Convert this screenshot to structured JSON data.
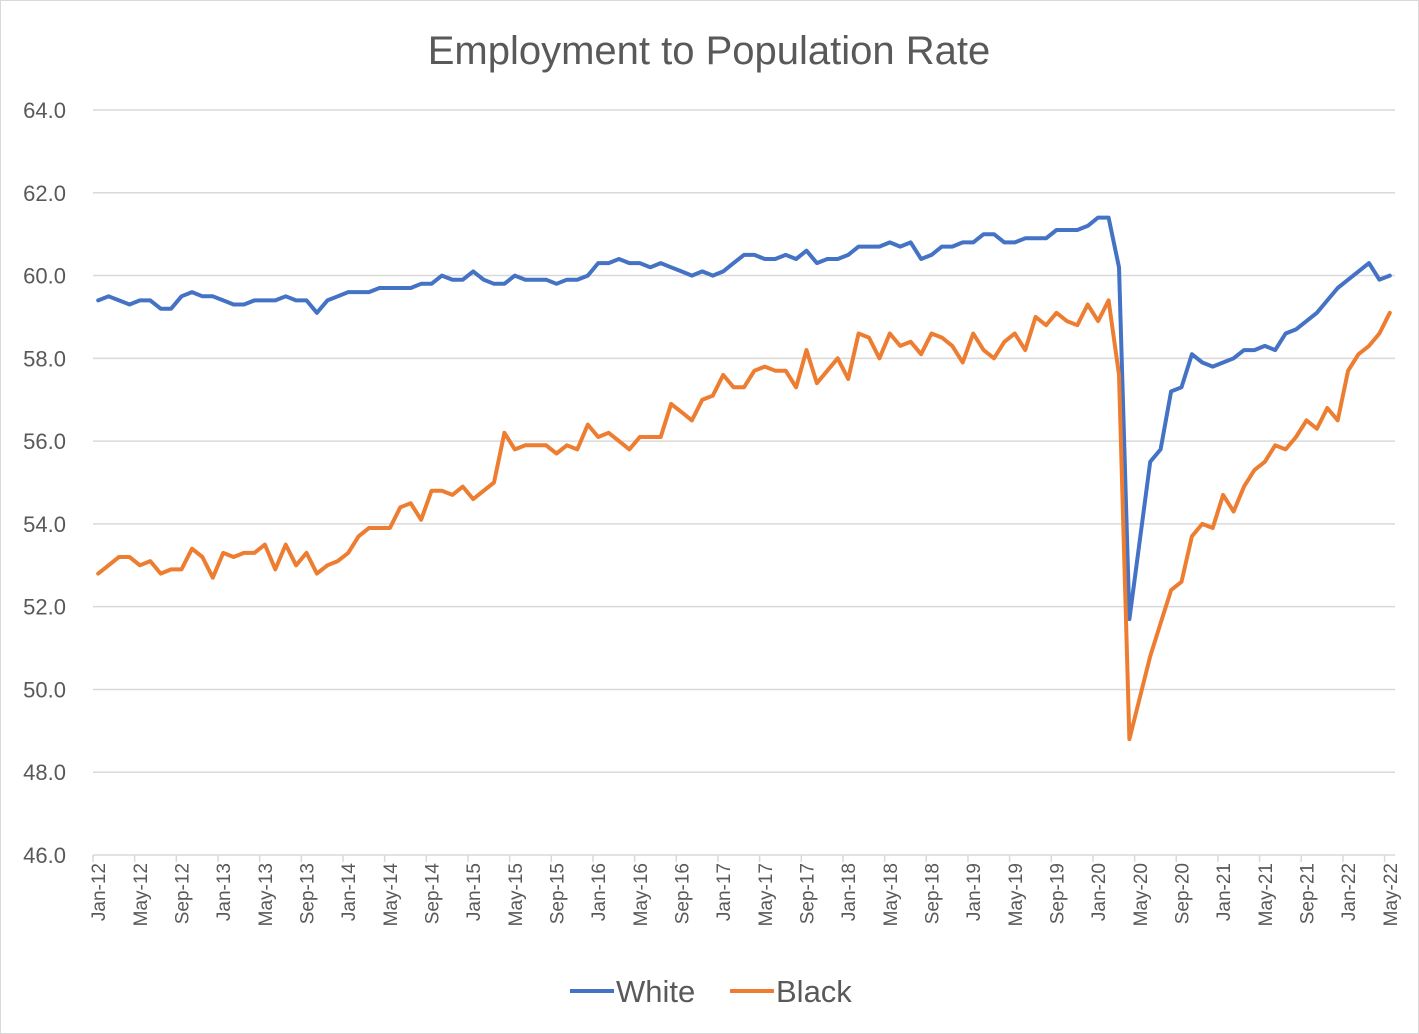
{
  "chart_data": {
    "type": "line",
    "title": "Employment to Population Rate",
    "xlabel": "",
    "ylabel": "",
    "ylim": [
      46,
      64
    ],
    "yticks": [
      "46.0",
      "48.0",
      "50.0",
      "52.0",
      "54.0",
      "56.0",
      "58.0",
      "60.0",
      "62.0",
      "64.0"
    ],
    "grid": true,
    "legend_position": "bottom",
    "x_start": "Jan-12",
    "x_end": "May-22",
    "x_frequency": "monthly",
    "xtick_labels": [
      "Jan-12",
      "May-12",
      "Sep-12",
      "Jan-13",
      "May-13",
      "Sep-13",
      "Jan-14",
      "May-14",
      "Sep-14",
      "Jan-15",
      "May-15",
      "Sep-15",
      "Jan-16",
      "May-16",
      "Sep-16",
      "Jan-17",
      "May-17",
      "Sep-17",
      "Jan-18",
      "May-18",
      "Sep-18",
      "Jan-19",
      "May-19",
      "Sep-19",
      "Jan-20",
      "May-20",
      "Sep-20",
      "Jan-21",
      "May-21",
      "Sep-21",
      "Jan-22",
      "May-22"
    ],
    "series": [
      {
        "name": "White",
        "color": "#4472C4",
        "values": [
          59.4,
          59.5,
          59.4,
          59.3,
          59.4,
          59.4,
          59.2,
          59.2,
          59.5,
          59.6,
          59.5,
          59.5,
          59.4,
          59.3,
          59.3,
          59.4,
          59.4,
          59.4,
          59.5,
          59.4,
          59.4,
          59.1,
          59.4,
          59.5,
          59.6,
          59.6,
          59.6,
          59.7,
          59.7,
          59.7,
          59.7,
          59.8,
          59.8,
          60.0,
          59.9,
          59.9,
          60.1,
          59.9,
          59.8,
          59.8,
          60.0,
          59.9,
          59.9,
          59.9,
          59.8,
          59.9,
          59.9,
          60.0,
          60.3,
          60.3,
          60.4,
          60.3,
          60.3,
          60.2,
          60.3,
          60.2,
          60.1,
          60.0,
          60.1,
          60.0,
          60.1,
          60.3,
          60.5,
          60.5,
          60.4,
          60.4,
          60.5,
          60.4,
          60.6,
          60.3,
          60.4,
          60.4,
          60.5,
          60.7,
          60.7,
          60.7,
          60.8,
          60.7,
          60.8,
          60.4,
          60.5,
          60.7,
          60.7,
          60.8,
          60.8,
          61.0,
          61.0,
          60.8,
          60.8,
          60.9,
          60.9,
          60.9,
          61.1,
          61.1,
          61.1,
          61.2,
          61.4,
          61.4,
          60.2,
          51.7,
          53.6,
          55.5,
          55.8,
          57.2,
          57.3,
          58.1,
          57.9,
          57.8,
          57.9,
          58.0,
          58.2,
          58.2,
          58.3,
          58.2,
          58.6,
          58.7,
          58.9,
          59.1,
          59.4,
          59.7,
          59.9,
          60.1,
          60.3,
          59.9,
          60.0
        ]
      },
      {
        "name": "Black",
        "color": "#ED7D31",
        "values": [
          52.8,
          53.0,
          53.2,
          53.2,
          53.0,
          53.1,
          52.8,
          52.9,
          52.9,
          53.4,
          53.2,
          52.7,
          53.3,
          53.2,
          53.3,
          53.3,
          53.5,
          52.9,
          53.5,
          53.0,
          53.3,
          52.8,
          53.0,
          53.1,
          53.3,
          53.7,
          53.9,
          53.9,
          53.9,
          54.4,
          54.5,
          54.1,
          54.8,
          54.8,
          54.7,
          54.9,
          54.6,
          54.8,
          55.0,
          56.2,
          55.8,
          55.9,
          55.9,
          55.9,
          55.7,
          55.9,
          55.8,
          56.4,
          56.1,
          56.2,
          56.0,
          55.8,
          56.1,
          56.1,
          56.1,
          56.9,
          56.7,
          56.5,
          57.0,
          57.1,
          57.6,
          57.3,
          57.3,
          57.7,
          57.8,
          57.7,
          57.7,
          57.3,
          58.2,
          57.4,
          57.7,
          58.0,
          57.5,
          58.6,
          58.5,
          58.0,
          58.6,
          58.3,
          58.4,
          58.1,
          58.6,
          58.5,
          58.3,
          57.9,
          58.6,
          58.2,
          58.0,
          58.4,
          58.6,
          58.2,
          59.0,
          58.8,
          59.1,
          58.9,
          58.8,
          59.3,
          58.9,
          59.4,
          57.6,
          48.8,
          49.8,
          50.8,
          51.6,
          52.4,
          52.6,
          53.7,
          54.0,
          53.9,
          54.7,
          54.3,
          54.9,
          55.3,
          55.5,
          55.9,
          55.8,
          56.1,
          56.5,
          56.3,
          56.8,
          56.5,
          57.7,
          58.1,
          58.3,
          58.6,
          59.1
        ]
      }
    ]
  }
}
